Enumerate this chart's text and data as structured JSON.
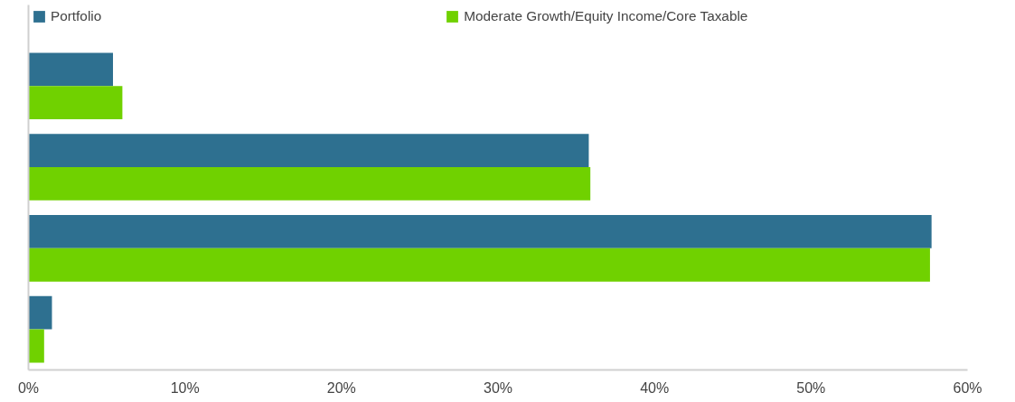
{
  "chart_data": {
    "type": "bar",
    "orientation": "horizontal",
    "categories": [
      null,
      null,
      null,
      null
    ],
    "series": [
      {
        "name": "Portfolio",
        "color": "#2e7090",
        "values": [
          5.4,
          35.8,
          57.7,
          1.5
        ]
      },
      {
        "name": "Moderate Growth/Equity Income/Core Taxable",
        "color": "#70d100",
        "values": [
          6.0,
          35.9,
          57.6,
          1.0
        ]
      }
    ],
    "xlim": [
      0,
      60
    ],
    "xticks": [
      {
        "value": 0,
        "label": "0%"
      },
      {
        "value": 10,
        "label": "10%"
      },
      {
        "value": 20,
        "label": "20%"
      },
      {
        "value": 30,
        "label": "30%"
      },
      {
        "value": 40,
        "label": "40%"
      },
      {
        "value": 50,
        "label": "50%"
      },
      {
        "value": 60,
        "label": "60%"
      }
    ],
    "tick_labels": "x",
    "grid": false,
    "legend": "top"
  }
}
